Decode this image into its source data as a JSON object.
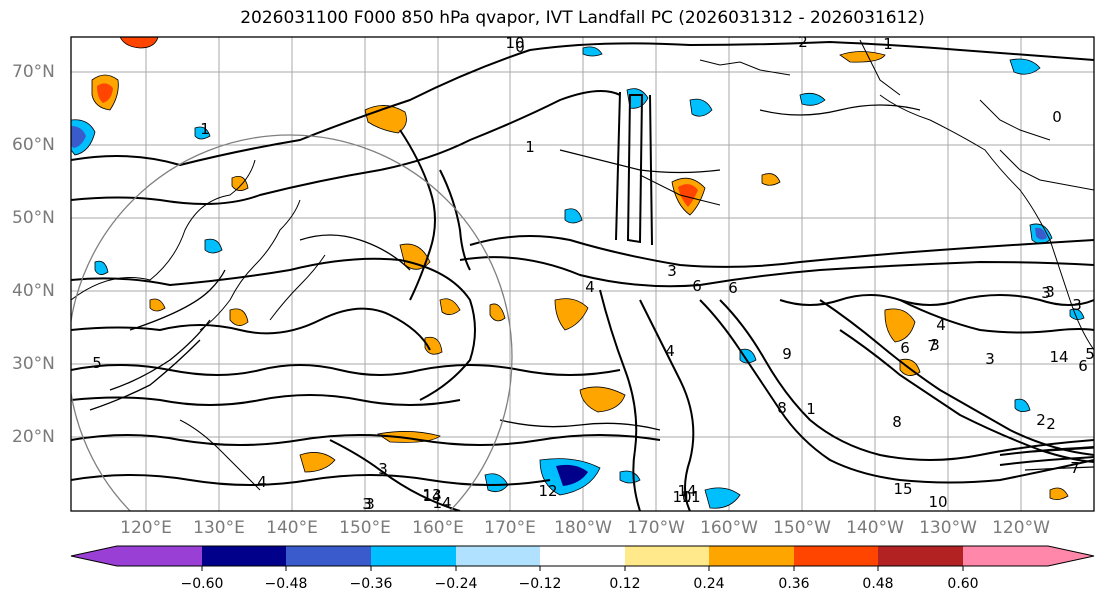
{
  "title": "2026031100 F000 850 hPa qvapor, IVT Landfall PC (2026031312 - 2026031612)",
  "map": {
    "lat_ticks": [
      "70°N",
      "60°N",
      "50°N",
      "40°N",
      "30°N",
      "20°N"
    ],
    "lon_ticks": [
      "120°E",
      "130°E",
      "140°E",
      "150°E",
      "160°E",
      "170°E",
      "180°W",
      "170°W",
      "160°W",
      "150°W",
      "140°W",
      "130°W",
      "120°W"
    ],
    "contour_labels": [
      "1",
      "0",
      "10",
      "1",
      "0",
      "1",
      "2",
      "4",
      "3",
      "6",
      "6",
      "4",
      "8",
      "9",
      "6",
      "7",
      "8",
      "1",
      "3",
      "3",
      "3",
      "3",
      "4",
      "5",
      "6",
      "5",
      "13",
      "14",
      "3",
      "4",
      "3",
      "14",
      "12",
      "10",
      "11",
      "10",
      "2",
      "15",
      "14",
      "11",
      "14",
      "3",
      "3",
      "2",
      "7"
    ]
  },
  "colorbar": {
    "colors": [
      "#9a3fd6",
      "#00008b",
      "#3a5bcc",
      "#00bfff",
      "#b0e2ff",
      "#ffffff",
      "#ffe98a",
      "#ffa500",
      "#ff4500",
      "#b22222",
      "#ff87aa"
    ],
    "ticks": [
      "−0.60",
      "−0.48",
      "−0.36",
      "−0.24",
      "−0.12",
      "0.12",
      "0.24",
      "0.36",
      "0.48",
      "0.60"
    ]
  }
}
